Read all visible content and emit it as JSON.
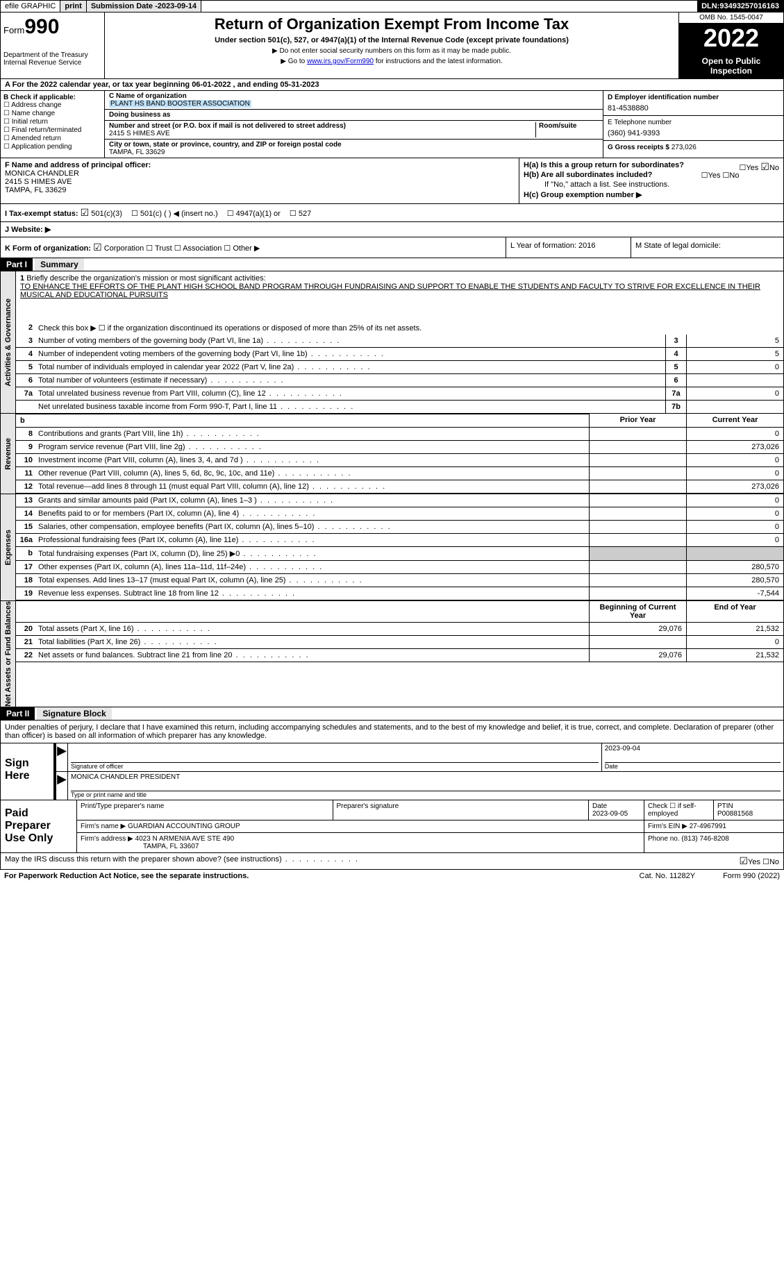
{
  "topbar": {
    "efile": "efile GRAPHIC",
    "print": "print",
    "submission_label": "Submission Date - ",
    "submission_date": "2023-09-14",
    "dln_label": "DLN: ",
    "dln": "93493257016163"
  },
  "header": {
    "form_prefix": "Form",
    "form_number": "990",
    "title": "Return of Organization Exempt From Income Tax",
    "subtitle": "Under section 501(c), 527, or 4947(a)(1) of the Internal Revenue Code (except private foundations)",
    "note1": "▶ Do not enter social security numbers on this form as it may be made public.",
    "note2_prefix": "▶ Go to ",
    "note2_link": "www.irs.gov/Form990",
    "note2_suffix": " for instructions and the latest information.",
    "dept": "Department of the Treasury\nInternal Revenue Service",
    "omb": "OMB No. 1545-0047",
    "year": "2022",
    "inspection": "Open to Public Inspection"
  },
  "row_a": "A For the 2022 calendar year, or tax year beginning 06-01-2022    , and ending 05-31-2023",
  "section_b": {
    "label": "B Check if applicable:",
    "items": [
      "Address change",
      "Name change",
      "Initial return",
      "Final return/terminated",
      "Amended return",
      "Application pending"
    ]
  },
  "section_c": {
    "name_label": "C Name of organization",
    "name": "PLANT HS BAND BOOSTER ASSOCIATION",
    "dba_label": "Doing business as",
    "addr_label": "Number and street (or P.O. box if mail is not delivered to street address)",
    "room_label": "Room/suite",
    "addr": "2415 S HIMES AVE",
    "city_label": "City or town, state or province, country, and ZIP or foreign postal code",
    "city": "TAMPA, FL  33629"
  },
  "section_d": {
    "ein_label": "D Employer identification number",
    "ein": "81-4538880",
    "phone_label": "E Telephone number",
    "phone": "(360) 941-9393",
    "gross_label": "G Gross receipts $ ",
    "gross": "273,026"
  },
  "section_f": {
    "label": "F  Name and address of principal officer:",
    "name": "MONICA CHANDLER",
    "addr1": "2415 S HIMES AVE",
    "addr2": "TAMPA, FL  33629"
  },
  "section_h": {
    "ha": "H(a)  Is this a group return for subordinates?",
    "ha_ans": "No",
    "hb": "H(b)  Are all subordinates included?",
    "hb_note": "If \"No,\" attach a list. See instructions.",
    "hc": "H(c)  Group exemption number ▶"
  },
  "section_i": {
    "label": "I   Tax-exempt status:",
    "opt1": "501(c)(3)",
    "opt2": "501(c) (  ) ◀ (insert no.)",
    "opt3": "4947(a)(1) or",
    "opt4": "527"
  },
  "section_j": "J   Website: ▶",
  "section_k": {
    "label": "K Form of organization:",
    "opts": [
      "Corporation",
      "Trust",
      "Association",
      "Other ▶"
    ],
    "l": "L Year of formation: 2016",
    "m": "M State of legal domicile:"
  },
  "part1": {
    "header": "Part I",
    "title": "Summary",
    "tab1": "Activities & Governance",
    "tab2": "Revenue",
    "tab3": "Expenses",
    "tab4": "Net Assets or Fund Balances",
    "line1_label": "Briefly describe the organization's mission or most significant activities:",
    "line1_text": "TO ENHANCE THE EFFORTS OF THE PLANT HIGH SCHOOL BAND PROGRAM THROUGH FUNDRAISING AND SUPPORT TO ENABLE THE STUDENTS AND FACULTY TO STRIVE FOR EXCELLENCE IN THEIR MUSICAL AND EDUCATIONAL PURSUITS",
    "line2": "Check this box ▶ ☐  if the organization discontinued its operations or disposed of more than 25% of its net assets.",
    "lines_a": [
      {
        "n": "3",
        "t": "Number of voting members of the governing body (Part VI, line 1a)",
        "box": "3",
        "v": "5"
      },
      {
        "n": "4",
        "t": "Number of independent voting members of the governing body (Part VI, line 1b)",
        "box": "4",
        "v": "5"
      },
      {
        "n": "5",
        "t": "Total number of individuals employed in calendar year 2022 (Part V, line 2a)",
        "box": "5",
        "v": "0"
      },
      {
        "n": "6",
        "t": "Total number of volunteers (estimate if necessary)",
        "box": "6",
        "v": ""
      },
      {
        "n": "7a",
        "t": "Total unrelated business revenue from Part VIII, column (C), line 12",
        "box": "7a",
        "v": "0"
      },
      {
        "n": "",
        "t": "Net unrelated business taxable income from Form 990-T, Part I, line 11",
        "box": "7b",
        "v": ""
      }
    ],
    "col_hd1": "Prior Year",
    "col_hd2": "Current Year",
    "lines_rev": [
      {
        "n": "8",
        "t": "Contributions and grants (Part VIII, line 1h)",
        "c1": "",
        "c2": "0"
      },
      {
        "n": "9",
        "t": "Program service revenue (Part VIII, line 2g)",
        "c1": "",
        "c2": "273,026"
      },
      {
        "n": "10",
        "t": "Investment income (Part VIII, column (A), lines 3, 4, and 7d )",
        "c1": "",
        "c2": "0"
      },
      {
        "n": "11",
        "t": "Other revenue (Part VIII, column (A), lines 5, 6d, 8c, 9c, 10c, and 11e)",
        "c1": "",
        "c2": "0"
      },
      {
        "n": "12",
        "t": "Total revenue—add lines 8 through 11 (must equal Part VIII, column (A), line 12)",
        "c1": "",
        "c2": "273,026"
      }
    ],
    "lines_exp": [
      {
        "n": "13",
        "t": "Grants and similar amounts paid (Part IX, column (A), lines 1–3 )",
        "c1": "",
        "c2": "0"
      },
      {
        "n": "14",
        "t": "Benefits paid to or for members (Part IX, column (A), line 4)",
        "c1": "",
        "c2": "0"
      },
      {
        "n": "15",
        "t": "Salaries, other compensation, employee benefits (Part IX, column (A), lines 5–10)",
        "c1": "",
        "c2": "0"
      },
      {
        "n": "16a",
        "t": "Professional fundraising fees (Part IX, column (A), line 11e)",
        "c1": "",
        "c2": "0"
      },
      {
        "n": "b",
        "t": "Total fundraising expenses (Part IX, column (D), line 25) ▶0",
        "c1": "gray",
        "c2": "gray"
      },
      {
        "n": "17",
        "t": "Other expenses (Part IX, column (A), lines 11a–11d, 11f–24e)",
        "c1": "",
        "c2": "280,570"
      },
      {
        "n": "18",
        "t": "Total expenses. Add lines 13–17 (must equal Part IX, column (A), line 25)",
        "c1": "",
        "c2": "280,570"
      },
      {
        "n": "19",
        "t": "Revenue less expenses. Subtract line 18 from line 12",
        "c1": "",
        "c2": "-7,544"
      }
    ],
    "col_hd3": "Beginning of Current Year",
    "col_hd4": "End of Year",
    "lines_net": [
      {
        "n": "20",
        "t": "Total assets (Part X, line 16)",
        "c1": "29,076",
        "c2": "21,532"
      },
      {
        "n": "21",
        "t": "Total liabilities (Part X, line 26)",
        "c1": "",
        "c2": "0"
      },
      {
        "n": "22",
        "t": "Net assets or fund balances. Subtract line 21 from line 20",
        "c1": "29,076",
        "c2": "21,532"
      }
    ]
  },
  "part2": {
    "header": "Part II",
    "title": "Signature Block",
    "text": "Under penalties of perjury, I declare that I have examined this return, including accompanying schedules and statements, and to the best of my knowledge and belief, it is true, correct, and complete. Declaration of preparer (other than officer) is based on all information of which preparer has any knowledge.",
    "sign_here": "Sign Here",
    "sig_officer": "Signature of officer",
    "sig_date": "2023-09-04",
    "officer_name": "MONICA CHANDLER  PRESIDENT",
    "type_name": "Type or print name and title",
    "paid_lbl": "Paid Preparer Use Only",
    "prep_hd": [
      "Print/Type preparer's name",
      "Preparer's signature",
      "Date",
      "Check ☐ if self-employed",
      "PTIN"
    ],
    "prep_date": "2023-09-05",
    "ptin": "P00881568",
    "firm_name_lbl": "Firm's name      ▶ ",
    "firm_name": "GUARDIAN ACCOUNTING GROUP",
    "firm_ein_lbl": "Firm's EIN ▶ ",
    "firm_ein": "27-4967991",
    "firm_addr_lbl": "Firm's address ▶ ",
    "firm_addr": "4023 N ARMENIA AVE STE 490",
    "firm_city": "TAMPA, FL  33607",
    "phone_lbl": "Phone no. ",
    "firm_phone": "(813) 746-8208",
    "discuss": "May the IRS discuss this return with the preparer shown above? (see instructions)",
    "discuss_ans": "Yes",
    "paperwork": "For Paperwork Reduction Act Notice, see the separate instructions.",
    "catno": "Cat. No. 11282Y",
    "formfoot": "Form 990 (2022)"
  }
}
